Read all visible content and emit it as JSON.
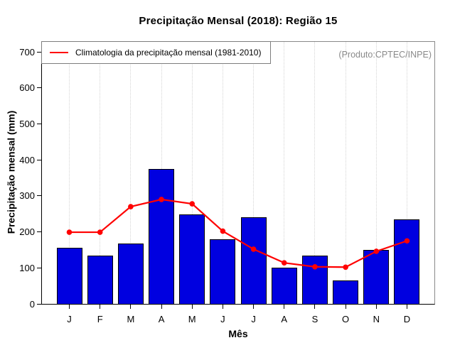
{
  "title": "Precipitação Mensal (2018): Região 15",
  "annotation": "(Produto:CPTEC/INPE)",
  "legend": {
    "label": "Climatologia da precipitação mensal (1981-2010)"
  },
  "axes": {
    "x_label": "Mês",
    "y_label": "Precipitação mensal (mm)"
  },
  "colors": {
    "bar": "#0000e0",
    "bar_border": "#000000",
    "line": "#ff0000",
    "annotation_text": "#8a8a8a",
    "grid": "#d4d4d4",
    "frame": "#8a8a8a"
  },
  "chart_data": {
    "type": "bar",
    "title": "Precipitação Mensal (2018): Região 15",
    "xlabel": "Mês",
    "ylabel": "Precipitação mensal (mm)",
    "categories": [
      "J",
      "F",
      "M",
      "A",
      "M",
      "J",
      "J",
      "A",
      "S",
      "O",
      "N",
      "D"
    ],
    "series": [
      {
        "name": "Precipitação Mensal (2018)",
        "type": "bar",
        "values": [
          155,
          134,
          167,
          375,
          248,
          180,
          240,
          100,
          134,
          65,
          150,
          235
        ]
      },
      {
        "name": "Climatologia da precipitação mensal (1981-2010)",
        "type": "line",
        "values": [
          199,
          199,
          270,
          290,
          278,
          202,
          152,
          114,
          103,
          102,
          146,
          175
        ]
      }
    ],
    "ylim": [
      0,
      700
    ],
    "yticks": [
      0,
      100,
      200,
      300,
      400,
      500,
      600,
      700
    ],
    "grid": "vertical-dotted",
    "legend_position": "top-left",
    "annotation_position": "top-right"
  }
}
